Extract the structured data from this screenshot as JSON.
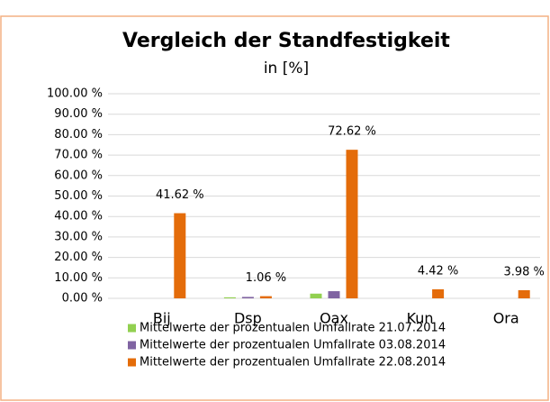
{
  "chart_data": {
    "type": "bar",
    "title": "Vergleich der Standfestigkeit",
    "subtitle": "in [%]",
    "categories": [
      "Bij",
      "Dsp",
      "Oax",
      "Kun",
      "Ora"
    ],
    "series": [
      {
        "name": "Mittelwerte der prozentualen Umfallrate 21.07.2014",
        "color": "#92d050",
        "values": [
          0,
          0.5,
          2.3,
          0,
          0
        ]
      },
      {
        "name": "Mittelwerte der prozentualen Umfallrate 03.08.2014",
        "color": "#8064a2",
        "values": [
          0,
          0.7,
          3.5,
          0,
          0
        ]
      },
      {
        "name": "Mittelwerte der prozentualen Umfallrate 22.08.2014",
        "color": "#e46c0a",
        "values": [
          41.62,
          1.06,
          72.62,
          4.42,
          3.98
        ],
        "value_labels": [
          "41.62 %",
          "1.06 %",
          "72.62 %",
          "4.42 %",
          "3.98 %"
        ]
      }
    ],
    "ylim": [
      0,
      100
    ],
    "yticks": [
      {
        "value": 0,
        "label": "0.00 %"
      },
      {
        "value": 10,
        "label": "10.00 %"
      },
      {
        "value": 20,
        "label": "20.00 %"
      },
      {
        "value": 30,
        "label": "30.00 %"
      },
      {
        "value": 40,
        "label": "40.00 %"
      },
      {
        "value": 50,
        "label": "50.00 %"
      },
      {
        "value": 60,
        "label": "60.00 %"
      },
      {
        "value": 70,
        "label": "70.00 %"
      },
      {
        "value": 80,
        "label": "80.00 %"
      },
      {
        "value": 90,
        "label": "90.00 %"
      },
      {
        "value": 100,
        "label": "100.00 %"
      }
    ],
    "grid": true
  }
}
